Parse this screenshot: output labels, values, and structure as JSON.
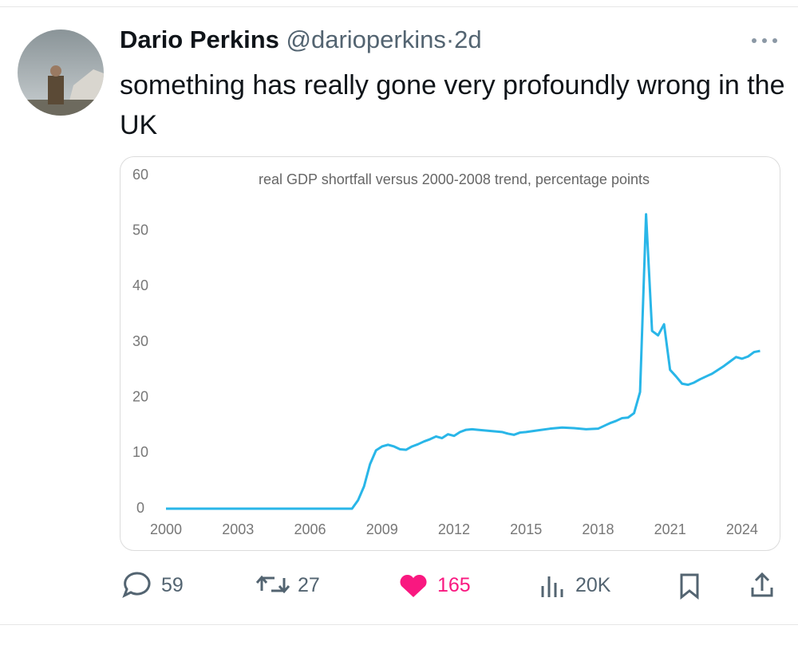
{
  "tweet": {
    "name": "Dario Perkins",
    "handle": "@darioperkins",
    "separator": "·",
    "time": "2d",
    "text": "something has really gone very profoundly wrong in the UK",
    "replies": "59",
    "reposts": "27",
    "likes": "165",
    "views": "20K"
  },
  "chart_data": {
    "type": "line",
    "title": "real GDP shortfall versus 2000-2008 trend, percentage points",
    "x": [
      2000,
      2007.75,
      2008,
      2008.25,
      2008.5,
      2008.75,
      2009,
      2009.25,
      2009.5,
      2009.75,
      2010,
      2010.25,
      2010.5,
      2010.75,
      2011,
      2011.25,
      2011.5,
      2011.75,
      2012,
      2012.25,
      2012.5,
      2012.75,
      2013,
      2013.5,
      2014,
      2014.25,
      2014.5,
      2014.75,
      2015,
      2015.5,
      2016,
      2016.5,
      2017,
      2017.5,
      2018,
      2018.25,
      2018.5,
      2018.75,
      2019,
      2019.25,
      2019.5,
      2019.75,
      2020,
      2020.25,
      2020.5,
      2020.75,
      2021,
      2021.25,
      2021.5,
      2021.75,
      2022,
      2022.25,
      2022.5,
      2022.75,
      2023,
      2023.25,
      2023.5,
      2023.75,
      2024,
      2024.25,
      2024.5,
      2024.75
    ],
    "values": [
      0,
      0,
      1.5,
      4,
      8,
      10.5,
      11.2,
      11.5,
      11.2,
      10.7,
      10.6,
      11.2,
      11.6,
      12.1,
      12.5,
      13,
      12.7,
      13.4,
      13.1,
      13.8,
      14.2,
      14.3,
      14.2,
      14,
      13.8,
      13.5,
      13.3,
      13.7,
      13.8,
      14.1,
      14.4,
      14.6,
      14.5,
      14.3,
      14.4,
      14.9,
      15.4,
      15.8,
      16.3,
      16.4,
      17.2,
      21,
      53,
      32,
      31.2,
      33.2,
      25,
      23.8,
      22.5,
      22.3,
      22.7,
      23.3,
      23.8,
      24.3,
      25,
      25.7,
      26.5,
      27.3,
      27,
      27.4,
      28.2,
      28.4
    ],
    "color": "#29b6e8",
    "xlim": [
      2000,
      2025
    ],
    "xticks": [
      2000,
      2003,
      2006,
      2009,
      2012,
      2015,
      2018,
      2021,
      2024
    ],
    "ylim": [
      0,
      60
    ],
    "yticks": [
      0,
      10,
      20,
      30,
      40,
      50,
      60
    ],
    "grid": false
  }
}
